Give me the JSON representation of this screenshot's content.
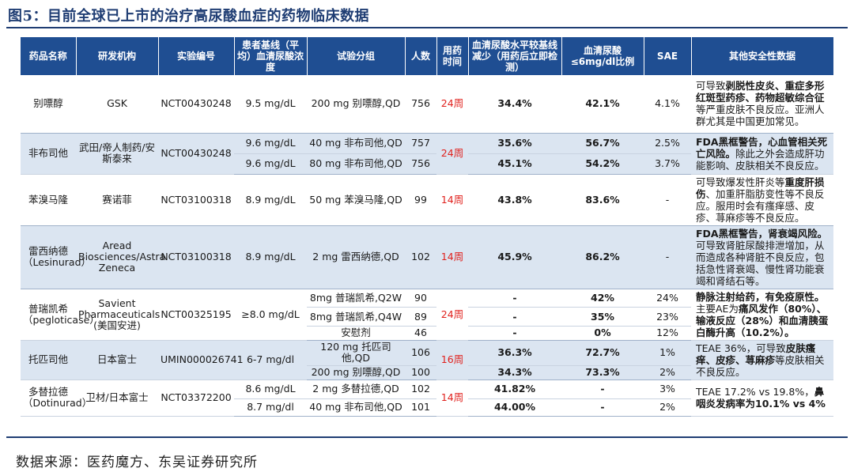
{
  "figure": {
    "title": "图5：目前全球已上市的治疗高尿酸血症的药物临床数据",
    "source": "数据来源：医药魔方、东吴证券研究所"
  },
  "table": {
    "headers": [
      "药品名称",
      "研发机构",
      "实验编号",
      "患者基线（平均）血清尿酸浓度",
      "试验分组",
      "人数",
      "用药时间",
      "血清尿酸水平较基线减少（用药后立即检测）",
      "血清尿酸≤6mg/dl比例",
      "SAE",
      "其他安全性数据"
    ],
    "drugs": [
      {
        "name": "别嘌醇",
        "org": "GSK",
        "trial": "NCT00430248",
        "duration": "24周",
        "arms": [
          {
            "baseline": "9.5 mg/dL",
            "group": "200 mg 别嘌醇,QD",
            "n": "756",
            "reduction": "34.4%",
            "ratio": "42.1%",
            "sae": "4.1%"
          }
        ],
        "safety": [
          {
            "t": "可导致",
            "b": false
          },
          {
            "t": "剥脱性皮炎、重症多形红斑型药疹、药物超敏综合征",
            "b": true
          },
          {
            "t": "等严重皮肤不良反应。亚洲人群尤其是中国更加常见。",
            "b": false
          }
        ]
      },
      {
        "name": "非布司他",
        "org": "武田/帝人制药/安斯泰来",
        "trial": "NCT00430248",
        "duration": "24周",
        "arms": [
          {
            "baseline": "9.6 mg/dL",
            "group": "40 mg 非布司他,QD",
            "n": "757",
            "reduction": "35.6%",
            "ratio": "56.7%",
            "sae": "2.5%"
          },
          {
            "baseline": "9.6 mg/dL",
            "group": "80 mg 非布司他,QD",
            "n": "756",
            "reduction": "45.1%",
            "ratio": "54.2%",
            "sae": "3.7%"
          }
        ],
        "safety": [
          {
            "t": "FDA黑框警告，心血管相关死亡风险。",
            "b": true
          },
          {
            "t": "除此之外会造成肝功能影响、皮肤相关不良反应。",
            "b": false
          }
        ]
      },
      {
        "name": "苯溴马隆",
        "org": "赛诺菲",
        "trial": "NCT03100318",
        "duration": "14周",
        "arms": [
          {
            "baseline": "8.9 mg/dL",
            "group": "50 mg 苯溴马隆,QD",
            "n": "99",
            "reduction": "43.8%",
            "ratio": "83.6%",
            "sae": "-"
          }
        ],
        "safety": [
          {
            "t": "可导致爆发性肝炎等",
            "b": false
          },
          {
            "t": "重度肝损伤",
            "b": true
          },
          {
            "t": "、加重肝脂肪变性等不良反应。服用时会有瘙痒感、皮疹、荨麻疹等不良反应。",
            "b": false
          }
        ]
      },
      {
        "name": "雷西纳德（Lesinurad）",
        "org": "Aread Biosciences/Astra Zeneca",
        "trial": "NCT03100318",
        "duration": "14周",
        "arms": [
          {
            "baseline": "8.9 mg/dL",
            "group": "2 mg 雷西纳德,QD",
            "n": "102",
            "reduction": "45.9%",
            "ratio": "86.2%",
            "sae": "-"
          }
        ],
        "safety": [
          {
            "t": "FDA黑框警告，肾衰竭风险。",
            "b": true
          },
          {
            "t": "可导致肾脏尿酸排泄增加，从而造成各种肾脏不良反应，包括急性肾衰竭、慢性肾功能衰竭和肾结石等。",
            "b": false
          }
        ]
      },
      {
        "name": "普瑞凯希（pegloticase）",
        "org": "Savient Pharmaceuticals (美国安进)",
        "trial": "NCT00325195",
        "duration": "24周",
        "arms": [
          {
            "baseline": "≥8.0 mg/dL",
            "group": "8mg 普瑞凯希,Q2W",
            "n": "90",
            "reduction": "-",
            "ratio": "42%",
            "sae": "24%"
          },
          {
            "baseline": "",
            "group": "8mg 普瑞凯希,Q4W",
            "n": "89",
            "reduction": "-",
            "ratio": "35%",
            "sae": "23%"
          },
          {
            "baseline": "",
            "group": "安慰剂",
            "n": "46",
            "reduction": "-",
            "ratio": "0%",
            "sae": "12%"
          }
        ],
        "safety": [
          {
            "t": "静脉注射给药，有免疫原性。",
            "b": true
          },
          {
            "t": "主要AE为",
            "b": false
          },
          {
            "t": "痛风发作（80%）、输液反应（28%）和血清胰蛋白酶升高（10.2%）。",
            "b": true
          }
        ]
      },
      {
        "name": "托匹司他",
        "org": "日本富士",
        "trial": "UMIN000026741",
        "duration": "16周",
        "arms": [
          {
            "baseline": "6-7 mg/dl",
            "group": "120 mg 托匹司他,QD",
            "n": "106",
            "reduction": "36.3%",
            "ratio": "72.7%",
            "sae": "1%"
          },
          {
            "baseline": "",
            "group": "200 mg 别嘌醇,QD",
            "n": "100",
            "reduction": "34.3%",
            "ratio": "73.3%",
            "sae": "2%"
          }
        ],
        "safety": [
          {
            "t": "TEAE 36%，可导致",
            "b": false
          },
          {
            "t": "皮肤瘙痒、皮疹、荨麻疹",
            "b": true
          },
          {
            "t": "等皮肤相关不良反应。",
            "b": false
          }
        ]
      },
      {
        "name": "多替拉德（Dotinurad）",
        "org": "卫材/日本富士",
        "trial": "NCT03372200",
        "duration": "14周",
        "arms": [
          {
            "baseline": "8.6 mg/dL",
            "group": "2 mg 多替拉德,QD",
            "n": "102",
            "reduction": "41.82%",
            "ratio": "-",
            "sae": "3%"
          },
          {
            "baseline": "8.7 mg/dl",
            "group": "40 mg 非布司他,QD",
            "n": "101",
            "reduction": "44.00%",
            "ratio": "-",
            "sae": "2%"
          }
        ],
        "safety": [
          {
            "t": "TEAE 17.2% vs 19.8%，",
            "b": false
          },
          {
            "t": "鼻咽炎发病率为10.1% vs 4%",
            "b": true
          }
        ]
      }
    ]
  }
}
